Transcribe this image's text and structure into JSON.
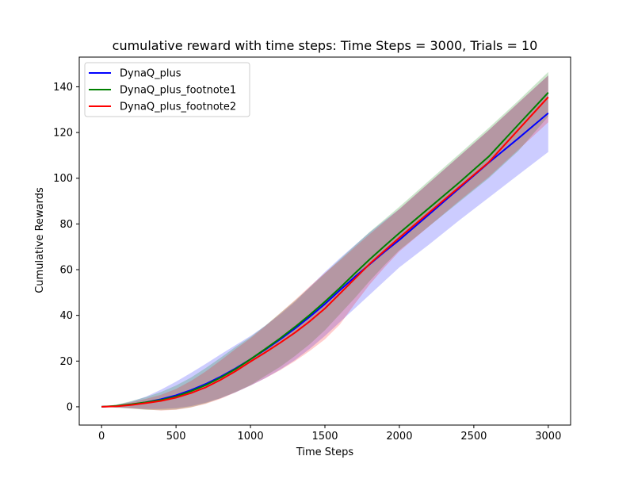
{
  "chart_data": {
    "type": "line",
    "title": "cumulative reward with time steps: Time Steps = 3000, Trials = 10",
    "xlabel": "Time Steps",
    "ylabel": "Cumulative Rewards",
    "xlim": [
      -150,
      3150
    ],
    "ylim": [
      -8,
      153
    ],
    "xticks": [
      0,
      500,
      1000,
      1500,
      2000,
      2500,
      3000
    ],
    "yticks": [
      0,
      20,
      40,
      60,
      80,
      100,
      120,
      140
    ],
    "grid": false,
    "legend": {
      "placement": "top-left"
    },
    "series": [
      {
        "name": "DynaQ_plus",
        "color": "#0000ff",
        "x": [
          0,
          100,
          200,
          300,
          400,
          500,
          600,
          700,
          800,
          900,
          1000,
          1100,
          1200,
          1300,
          1400,
          1500,
          1600,
          1700,
          1800,
          1900,
          2000,
          2200,
          2400,
          2600,
          2800,
          3000
        ],
        "mean": [
          0,
          0.3,
          1.0,
          2.0,
          3.3,
          5.0,
          7.3,
          10.0,
          13.2,
          16.8,
          20.8,
          25.0,
          29.5,
          34.3,
          39.5,
          45.0,
          51.0,
          56.8,
          62.3,
          67.8,
          73.0,
          84.2,
          95.5,
          106.8,
          117.5,
          128.5
        ],
        "upper": [
          0,
          0.8,
          2.3,
          4.5,
          7.5,
          11.0,
          14.8,
          18.8,
          23.0,
          27.0,
          31.0,
          35.5,
          40.5,
          46.0,
          52.5,
          59.0,
          65.0,
          70.7,
          76.3,
          81.5,
          86.5,
          98.0,
          109.5,
          121.0,
          133.0,
          145.0
        ],
        "lower": [
          0,
          -0.3,
          -0.6,
          -1.0,
          -1.0,
          -0.6,
          0.3,
          1.8,
          3.8,
          6.3,
          9.3,
          12.5,
          16.3,
          20.5,
          25.5,
          31.0,
          37.0,
          43.0,
          49.0,
          55.0,
          61.0,
          71.0,
          81.5,
          91.5,
          101.5,
          111.5
        ]
      },
      {
        "name": "DynaQ_plus_footnote1",
        "color": "#008000",
        "x": [
          0,
          100,
          200,
          300,
          400,
          500,
          600,
          700,
          800,
          900,
          1000,
          1100,
          1200,
          1300,
          1400,
          1500,
          1600,
          1700,
          1800,
          1900,
          2000,
          2200,
          2400,
          2600,
          2800,
          3000
        ],
        "mean": [
          0,
          0.4,
          1.1,
          2.0,
          3.0,
          4.5,
          6.8,
          9.5,
          12.8,
          16.5,
          20.8,
          25.3,
          30.0,
          35.0,
          40.3,
          46.0,
          52.0,
          58.3,
          64.5,
          70.3,
          76.0,
          87.0,
          98.0,
          109.5,
          123.5,
          137.5
        ],
        "upper": [
          0,
          1.0,
          2.5,
          4.3,
          6.5,
          9.3,
          12.8,
          17.0,
          21.5,
          26.2,
          30.5,
          35.5,
          41.0,
          46.5,
          52.3,
          58.3,
          64.5,
          70.5,
          76.5,
          82.0,
          87.5,
          99.0,
          110.5,
          122.0,
          134.0,
          146.5
        ],
        "lower": [
          0,
          -0.4,
          -0.8,
          -1.3,
          -1.5,
          -1.2,
          -0.2,
          1.5,
          3.8,
          6.5,
          9.5,
          13.5,
          17.5,
          22.3,
          27.5,
          33.5,
          40.5,
          47.5,
          55.0,
          62.0,
          68.5,
          79.0,
          89.5,
          100.0,
          112.0,
          127.0
        ]
      },
      {
        "name": "DynaQ_plus_footnote2",
        "color": "#ff0000",
        "x": [
          0,
          100,
          200,
          300,
          400,
          500,
          600,
          700,
          800,
          900,
          1000,
          1100,
          1200,
          1300,
          1400,
          1500,
          1600,
          1700,
          1800,
          1900,
          2000,
          2200,
          2400,
          2600,
          2800,
          3000
        ],
        "mean": [
          0,
          0.2,
          0.8,
          1.6,
          2.6,
          4.0,
          6.0,
          8.5,
          11.8,
          15.6,
          19.8,
          23.8,
          28.0,
          32.5,
          37.5,
          43.0,
          49.5,
          56.0,
          62.5,
          68.3,
          74.0,
          85.0,
          96.0,
          107.0,
          121.3,
          135.5
        ],
        "upper": [
          0,
          0.7,
          2.0,
          3.5,
          5.3,
          7.8,
          11.3,
          15.5,
          20.3,
          25.3,
          30.0,
          35.3,
          41.0,
          46.8,
          52.8,
          58.5,
          64.0,
          69.8,
          75.5,
          81.0,
          86.5,
          98.0,
          109.5,
          121.0,
          133.0,
          145.0
        ],
        "lower": [
          0,
          -0.3,
          -0.7,
          -1.2,
          -1.6,
          -1.3,
          -0.3,
          1.3,
          3.5,
          6.3,
          9.3,
          12.5,
          16.0,
          20.0,
          24.5,
          29.5,
          36.0,
          45.0,
          53.5,
          61.0,
          68.0,
          79.0,
          90.0,
          100.5,
          112.5,
          124.5
        ]
      }
    ]
  }
}
